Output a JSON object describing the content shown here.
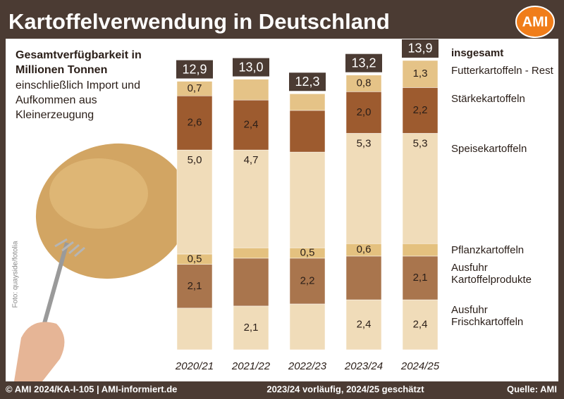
{
  "chart_data": {
    "type": "stacked_bar",
    "title": "Kartoffelverwendung in Deutschland",
    "logo": "AMI",
    "subtitle_bold": "Gesamtverfügbarkeit in Millionen Tonnen",
    "subtitle": "einschließlich Import und Aufkommen aus Kleinerzeugung",
    "photo_credit": "Foto: quayside/fotolia",
    "categories": [
      "2020/21",
      "2021/22",
      "2022/23",
      "2023/24",
      "2024/25"
    ],
    "ylim": [
      0,
      14
    ],
    "total_name": "insgesamt",
    "totals": [
      12.9,
      13.0,
      12.3,
      13.2,
      13.9
    ],
    "total_labels": [
      "12,9",
      "13,0",
      "12,3",
      "13,2",
      "13,9"
    ],
    "series": [
      {
        "name": "Ausfuhr Frischkartoffeln",
        "color": "#f0dcb9",
        "values": [
          2.0,
          2.1,
          2.2,
          2.4,
          2.4
        ],
        "value_labels": [
          null,
          "2,1",
          null,
          "2,4",
          "2,4"
        ]
      },
      {
        "name": "Ausfuhr Kartoffelprodukte",
        "color": "#a9754d",
        "values": [
          2.1,
          2.3,
          2.2,
          2.1,
          2.1
        ],
        "value_labels": [
          "2,1",
          null,
          "2,2",
          null,
          "2,1"
        ]
      },
      {
        "name": "Pflanzkartoffeln",
        "color": "#e4c17f",
        "values": [
          0.5,
          0.5,
          0.5,
          0.6,
          0.6
        ],
        "value_labels": [
          "0,5",
          null,
          "0,5",
          "0,6",
          null
        ]
      },
      {
        "name": "Speisekartoffeln",
        "color": "#f0dcb9",
        "values": [
          5.0,
          4.7,
          4.6,
          5.3,
          5.3
        ],
        "value_labels": [
          "5,0",
          "4,7",
          null,
          "5,3",
          "5,3"
        ]
      },
      {
        "name": "Stärkekartoffeln",
        "color": "#9d5b2f",
        "values": [
          2.6,
          2.4,
          2.0,
          2.0,
          2.2
        ],
        "value_labels": [
          "2,6",
          "2,4",
          null,
          "2,0",
          "2,2"
        ]
      },
      {
        "name": "Futterkartoffeln - Rest",
        "color": "#e5c387",
        "values": [
          0.7,
          1.0,
          0.8,
          0.8,
          1.3
        ],
        "value_labels": [
          "0,7",
          null,
          null,
          "0,8",
          "1,3"
        ]
      }
    ],
    "footer_left": "© AMI 2024/KA-I-105 | AMI-informiert.de",
    "footer_center": "2023/24 vorläufig, 2024/25 geschätzt",
    "footer_right": "Quelle: AMI"
  }
}
